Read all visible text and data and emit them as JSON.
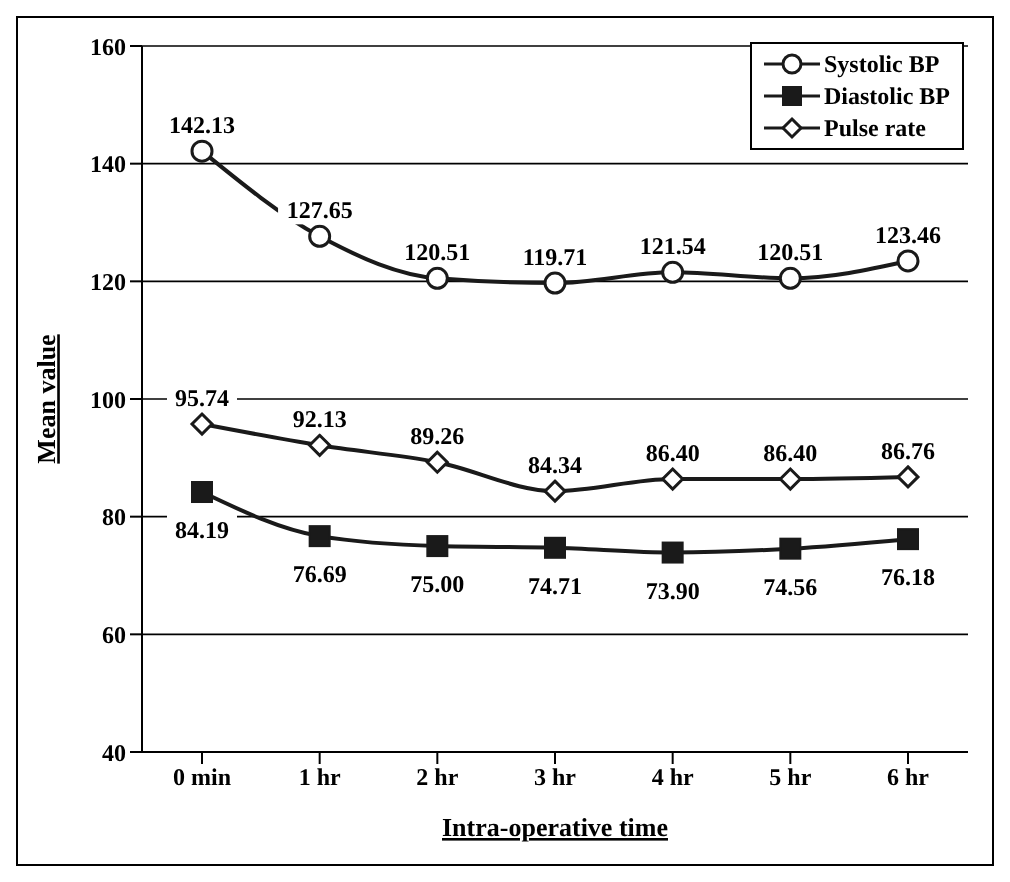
{
  "chart_data": {
    "type": "line",
    "xlabel": "Intra-operative time",
    "ylabel": "Mean value",
    "categories": [
      "0 min",
      "1 hr",
      "2 hr",
      "3 hr",
      "4 hr",
      "5 hr",
      "6 hr"
    ],
    "series": [
      {
        "name": "Systolic BP",
        "color": "#1a1a1a",
        "marker": "circle",
        "values": [
          142.13,
          127.65,
          120.51,
          119.71,
          121.54,
          120.51,
          123.46
        ],
        "value_labels": [
          "142.13",
          "127.65",
          "120.51",
          "119.71",
          "121.54",
          "120.51",
          "123.46"
        ]
      },
      {
        "name": "Diastolic BP",
        "color": "#1a1a1a",
        "marker": "square",
        "values": [
          84.19,
          76.69,
          75.0,
          74.71,
          73.9,
          74.56,
          76.18
        ],
        "value_labels": [
          "84.19",
          "76.69",
          "75.00",
          "74.71",
          "73.90",
          "74.56",
          "76.18"
        ]
      },
      {
        "name": "Pulse rate",
        "color": "#1a1a1a",
        "marker": "diamond",
        "values": [
          95.74,
          92.13,
          89.26,
          84.34,
          86.4,
          86.4,
          86.76
        ],
        "value_labels": [
          "95.74",
          "92.13",
          "89.26",
          "84.34",
          "86.40",
          "86.40",
          "86.76"
        ]
      }
    ],
    "ylim": [
      40,
      160
    ],
    "yticks": [
      40,
      60,
      80,
      100,
      120,
      140,
      160
    ],
    "grid": "y",
    "legend": "top right"
  }
}
